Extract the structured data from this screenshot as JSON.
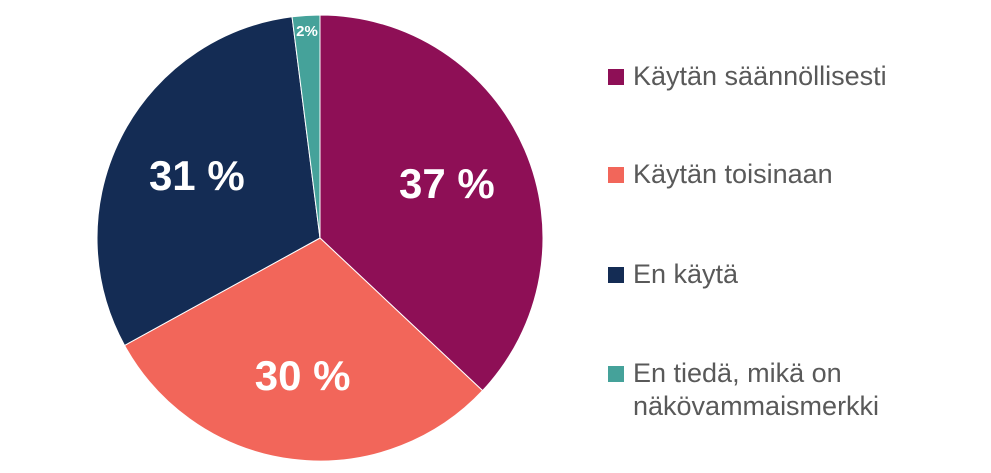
{
  "chart_data": {
    "type": "pie",
    "title": "",
    "categories": [
      "Käytän säännöllisesti",
      "Käytän toisinaan",
      "En käytä",
      "En tiedä, mikä on näkövammaismerkki"
    ],
    "values": [
      37,
      30,
      31,
      2
    ],
    "unit": "%",
    "data_labels": [
      "37 %",
      "30 %",
      "31 %",
      "2%"
    ],
    "colors": [
      "#8E0F56",
      "#F2665A",
      "#142C54",
      "#45A29A"
    ],
    "legend_position": "right",
    "start_angle_deg": 0,
    "direction": "clockwise"
  },
  "legend": {
    "items": [
      {
        "label": "Käytän säännöllisesti",
        "color": "#8E0F56"
      },
      {
        "label": "Käytän toisinaan",
        "color": "#F2665A"
      },
      {
        "label": "En käytä",
        "color": "#142C54"
      },
      {
        "label": "En tiedä, mikä on\nnäkövammaismerkki",
        "line1": "En tiedä, mikä on",
        "line2": "näkövammaismerkki",
        "color": "#45A29A"
      }
    ]
  }
}
